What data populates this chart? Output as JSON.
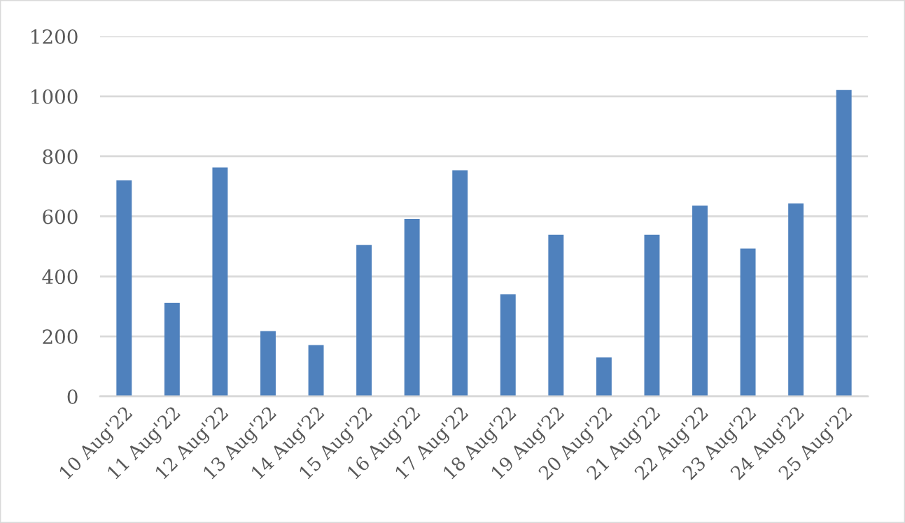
{
  "chart_data": {
    "type": "bar",
    "categories": [
      "10 Aug'22",
      "11 Aug'22",
      "12 Aug'22",
      "13 Aug'22",
      "14 Aug'22",
      "15 Aug'22",
      "16 Aug'22",
      "17 Aug'22",
      "18 Aug'22",
      "19 Aug'22",
      "20 Aug'22",
      "21 Aug'22",
      "22 Aug'22",
      "23 Aug'22",
      "24 Aug'22",
      "25 Aug'22"
    ],
    "values": [
      720,
      312,
      763,
      218,
      171,
      505,
      592,
      754,
      340,
      539,
      130,
      539,
      636,
      493,
      643,
      1021
    ],
    "color": "#4f81bd",
    "ylim": [
      0,
      1200
    ],
    "yticks": [
      0,
      200,
      400,
      600,
      800,
      1000,
      1200
    ],
    "grid": "y"
  }
}
